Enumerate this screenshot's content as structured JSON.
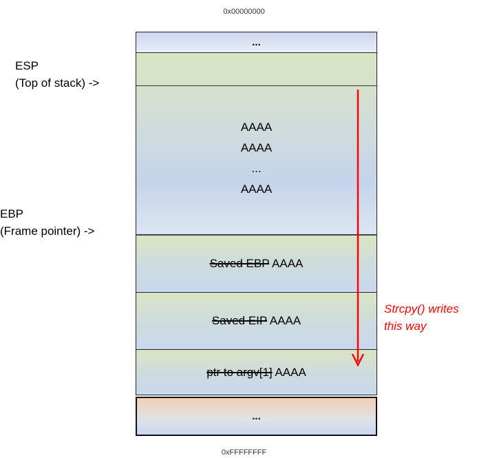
{
  "addresses": {
    "top": "0x00000000",
    "bottom": "0xFFFFFFFF"
  },
  "stack": {
    "top_dots": "...",
    "buffer_lines": [
      "AAAA",
      "AAAA",
      "...",
      "AAAA"
    ],
    "saved_ebp": {
      "struck": "Saved EBP",
      "overwrite": "AAAA"
    },
    "saved_eip": {
      "struck": "Saved EIP",
      "overwrite": "AAAA"
    },
    "ptr_argv": {
      "struck": "ptr to argv[1]",
      "overwrite": "AAAA"
    },
    "bottom_dots": "..."
  },
  "labels": {
    "esp_line1": "ESP",
    "esp_line2": "(Top of stack)  ->",
    "ebp_line1": "EBP",
    "ebp_line2": "(Frame pointer)  ->"
  },
  "annotation": {
    "line1": "Strcpy() writes",
    "line2": "this way"
  },
  "colors": {
    "arrow": "#ff0000",
    "annotation": "#ff0000"
  }
}
